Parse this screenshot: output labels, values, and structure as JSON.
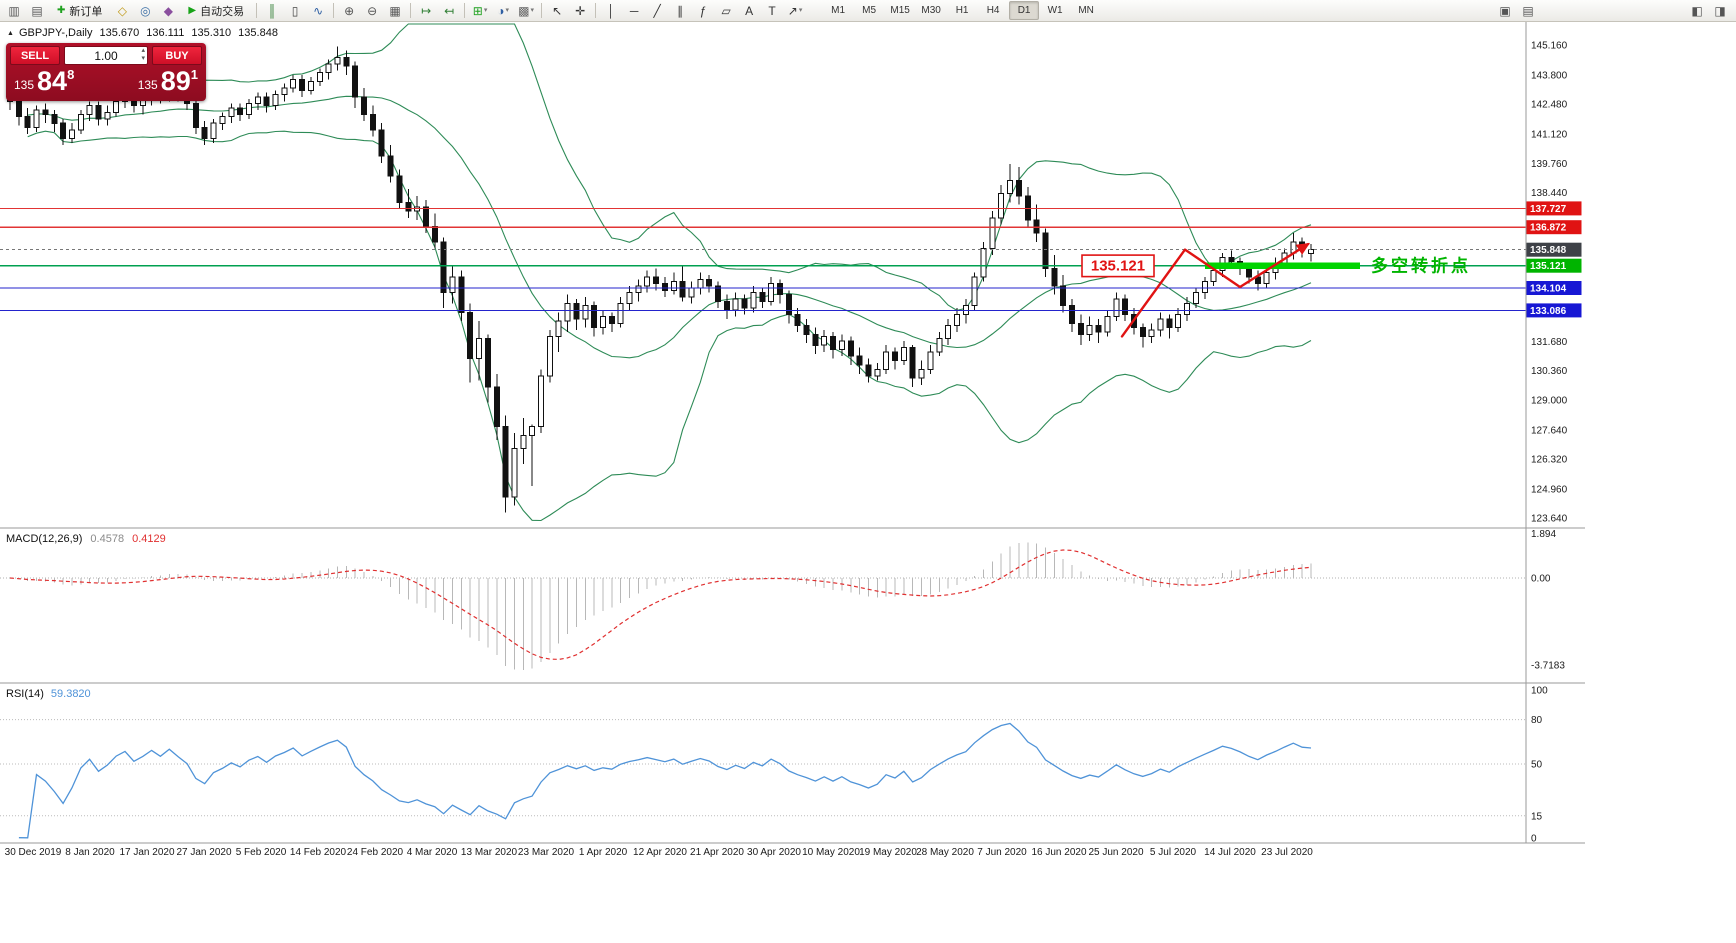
{
  "toolbar": {
    "new_order_label": "新订单",
    "autotrading_label": "自动交易",
    "timeframes": [
      "M1",
      "M5",
      "M15",
      "M30",
      "H1",
      "H4",
      "D1",
      "W1",
      "MN"
    ],
    "active_timeframe": "D1",
    "left_icons": [
      {
        "name": "chart-window-icon",
        "glyph": "▥",
        "color": "#5a5a5a"
      },
      {
        "name": "profiles-icon",
        "glyph": "▤",
        "color": "#5a5a5a"
      }
    ],
    "mid_icons": [
      {
        "name": "history-center-icon",
        "glyph": "◇",
        "color": "#c09a18"
      },
      {
        "name": "global-search-icon",
        "glyph": "◎",
        "color": "#3a6ea5"
      },
      {
        "name": "metaeditor-icon",
        "glyph": "◆",
        "color": "#8a4f9e"
      }
    ],
    "tool_icons": [
      {
        "name": "bar-chart-icon",
        "glyph": "║",
        "color": "#2e7d32"
      },
      {
        "name": "candlestick-chart-icon",
        "glyph": "▯",
        "color": "#444444"
      },
      {
        "name": "line-chart-icon",
        "glyph": "∿",
        "color": "#2e5fa3"
      },
      {
        "sep": true
      },
      {
        "name": "zoom-in-icon",
        "glyph": "⊕",
        "color": "#555555"
      },
      {
        "name": "zoom-out-icon",
        "glyph": "⊖",
        "color": "#555555"
      },
      {
        "name": "tile-windows-icon",
        "glyph": "▦",
        "color": "#555555"
      },
      {
        "sep": true
      },
      {
        "name": "auto-scroll-icon",
        "glyph": "↦",
        "color": "#2e7d32"
      },
      {
        "name": "chart-shift-icon",
        "glyph": "↤",
        "color": "#2e7d32"
      },
      {
        "sep": true
      },
      {
        "name": "indicators-icon",
        "glyph": "⊞",
        "color": "#1fa11f",
        "caret": true
      },
      {
        "name": "periods-icon",
        "glyph": "◑",
        "color": "#2e5fa3",
        "caret": true
      },
      {
        "name": "templates-icon",
        "glyph": "▩",
        "color": "#666666",
        "caret": true
      },
      {
        "sep": true
      },
      {
        "name": "cursor-icon",
        "glyph": "↖",
        "color": "#333333"
      },
      {
        "name": "crosshair-icon",
        "glyph": "✛",
        "color": "#333333"
      },
      {
        "sep": true
      },
      {
        "name": "vertical-line-icon",
        "glyph": "│",
        "color": "#333333"
      },
      {
        "name": "horizontal-line-icon",
        "glyph": "─",
        "color": "#333333"
      },
      {
        "name": "trendline-icon",
        "glyph": "╱",
        "color": "#333333"
      },
      {
        "name": "channel-icon",
        "glyph": "∥",
        "color": "#333333"
      },
      {
        "name": "fibonacci-icon",
        "glyph": "ƒ",
        "color": "#333333"
      },
      {
        "name": "shapes-icon",
        "glyph": "▱",
        "color": "#333333"
      },
      {
        "name": "text-icon",
        "glyph": "A",
        "color": "#333333"
      },
      {
        "name": "label-icon",
        "glyph": "T",
        "color": "#333333"
      },
      {
        "name": "arrows-icon",
        "glyph": "↗",
        "color": "#333333",
        "caret": true
      }
    ],
    "right_icons_a": [
      {
        "name": "data-window-icon",
        "glyph": "▣",
        "color": "#555555"
      },
      {
        "name": "market-depth-icon",
        "glyph": "▤",
        "color": "#555555"
      }
    ],
    "right_icons_b": [
      {
        "name": "dock-left-icon",
        "glyph": "◧",
        "color": "#555555"
      },
      {
        "name": "dock-right-icon",
        "glyph": "◨",
        "color": "#555555"
      }
    ]
  },
  "chart": {
    "header": {
      "expander": "▲",
      "symbol": "GBPJPY-,Daily",
      "open": "135.670",
      "high": "136.111",
      "low": "135.310",
      "close": "135.848"
    },
    "one_click": {
      "sell_label": "SELL",
      "buy_label": "BUY",
      "volume": "1.00",
      "spin_up": "▴",
      "spin_down": "▾",
      "sell_small": "135",
      "sell_big": "84",
      "sell_sup": "8",
      "buy_small": "135",
      "buy_big": "89",
      "buy_sup": "1"
    },
    "price_axis_labels": [
      "145.160",
      "143.800",
      "142.480",
      "141.120",
      "139.760",
      "138.440",
      "131.680",
      "130.360",
      "129.000",
      "127.640",
      "126.320",
      "124.960",
      "123.640"
    ],
    "badges": [
      {
        "label": "137.727",
        "style": "red"
      },
      {
        "label": "136.872",
        "style": "red"
      },
      {
        "label": "135.848",
        "style": "current"
      },
      {
        "label": "135.121",
        "style": "green"
      },
      {
        "label": "134.104",
        "style": "blue"
      },
      {
        "label": "133.086",
        "style": "blue"
      }
    ],
    "annotations": {
      "price_label": "135.121",
      "turning_point_text": "多空转折点"
    }
  },
  "macd": {
    "title": "MACD(12,26,9)",
    "value_main": "0.4578",
    "value_signal": "0.4129",
    "axis_labels": [
      "1.894",
      "0.00",
      "-3.7183"
    ]
  },
  "rsi": {
    "title": "RSI(14)",
    "value": "59.3820",
    "axis_labels": [
      "100",
      "80",
      "50",
      "15",
      "0"
    ],
    "levels": [
      80,
      50,
      15
    ]
  },
  "dates": [
    "30 Dec 2019",
    "8 Jan 2020",
    "17 Jan 2020",
    "27 Jan 2020",
    "5 Feb 2020",
    "14 Feb 2020",
    "24 Feb 2020",
    "4 Mar 2020",
    "13 Mar 2020",
    "23 Mar 2020",
    "1 Apr 2020",
    "12 Apr 2020",
    "21 Apr 2020",
    "30 Apr 2020",
    "10 May 2020",
    "19 May 2020",
    "28 May 2020",
    "7 Jun 2020",
    "16 Jun 2020",
    "25 Jun 2020",
    "5 Jul 2020",
    "14 Jul 2020",
    "23 Jul 2020"
  ],
  "colors": {
    "red_line": "#e23434",
    "blue_line": "#2323cc",
    "green_line": "#00a050",
    "green_thick": "#00d400",
    "badge_red": "#e01313",
    "badge_blue": "#1717d4",
    "badge_green": "#00b400",
    "badge_current": "#3e4147",
    "candle": "#111111",
    "bollinger": "#2e8b57",
    "macd_bar": "#b8b8b8",
    "macd_signal": "#e03030",
    "rsi_line": "#4f93d8",
    "annotation": "#e01313",
    "turning_text": "#00b400",
    "current_dash": "#777777"
  },
  "chart_data": {
    "type": "candlestick",
    "symbol": "GBPJPY",
    "period": "Daily",
    "bid": 135.848,
    "ask": 135.891,
    "ylim": [
      123.64,
      145.16
    ],
    "macd_range": [
      -3.7183,
      1.894
    ],
    "indicators": {
      "bollinger_period": 20,
      "bollinger_deviation": 2,
      "macd": [
        12,
        26,
        9
      ],
      "rsi_period": 14
    },
    "horizontal_lines": [
      {
        "value": 137.727,
        "style": "red"
      },
      {
        "value": 136.872,
        "style": "red"
      },
      {
        "value": 135.121,
        "style": "green"
      },
      {
        "value": 134.104,
        "style": "blue"
      },
      {
        "value": 133.086,
        "style": "blue"
      }
    ],
    "support_zone": {
      "price": 135.121,
      "x_from": 1205,
      "x_to": 1360
    },
    "trend_arrow_points": [
      [
        1122,
        131.9
      ],
      [
        1185,
        135.85
      ],
      [
        1240,
        134.15
      ],
      [
        1308,
        136.1
      ]
    ],
    "candles": [
      [
        143.0,
        143.2,
        142.2,
        142.6
      ],
      [
        142.6,
        142.8,
        141.5,
        141.9
      ],
      [
        141.9,
        142.3,
        141.1,
        141.4
      ],
      [
        141.4,
        142.4,
        141.2,
        142.2
      ],
      [
        142.2,
        142.5,
        141.6,
        142.0
      ],
      [
        142.0,
        142.2,
        141.2,
        141.6
      ],
      [
        141.6,
        141.8,
        140.6,
        140.9
      ],
      [
        140.9,
        141.6,
        140.7,
        141.3
      ],
      [
        141.3,
        142.2,
        141.1,
        142.0
      ],
      [
        142.0,
        142.6,
        141.7,
        142.4
      ],
      [
        142.4,
        142.6,
        141.5,
        141.8
      ],
      [
        141.8,
        142.4,
        141.5,
        142.1
      ],
      [
        142.1,
        142.8,
        141.9,
        142.6
      ],
      [
        142.6,
        143.1,
        142.3,
        142.9
      ],
      [
        142.9,
        143.0,
        142.1,
        142.4
      ],
      [
        142.4,
        142.9,
        142.0,
        142.7
      ],
      [
        142.7,
        143.3,
        142.4,
        143.1
      ],
      [
        143.1,
        143.4,
        142.5,
        142.8
      ],
      [
        142.8,
        143.5,
        142.6,
        143.3
      ],
      [
        143.3,
        143.5,
        142.6,
        142.9
      ],
      [
        142.9,
        143.2,
        142.2,
        142.5
      ],
      [
        142.5,
        142.7,
        141.1,
        141.4
      ],
      [
        141.4,
        141.7,
        140.6,
        140.9
      ],
      [
        140.9,
        141.8,
        140.7,
        141.6
      ],
      [
        141.6,
        142.1,
        141.3,
        141.9
      ],
      [
        141.9,
        142.5,
        141.6,
        142.3
      ],
      [
        142.3,
        142.5,
        141.7,
        142.0
      ],
      [
        142.0,
        142.7,
        141.8,
        142.5
      ],
      [
        142.5,
        143.0,
        142.2,
        142.8
      ],
      [
        142.8,
        143.0,
        142.1,
        142.4
      ],
      [
        142.4,
        143.1,
        142.2,
        142.9
      ],
      [
        142.9,
        143.4,
        142.6,
        143.2
      ],
      [
        143.2,
        143.8,
        143.0,
        143.6
      ],
      [
        143.6,
        143.8,
        142.8,
        143.1
      ],
      [
        143.1,
        143.7,
        142.9,
        143.5
      ],
      [
        143.5,
        144.1,
        143.3,
        143.9
      ],
      [
        143.9,
        144.5,
        143.6,
        144.3
      ],
      [
        144.3,
        145.1,
        144.0,
        144.6
      ],
      [
        144.6,
        144.9,
        143.8,
        144.2
      ],
      [
        144.2,
        144.4,
        142.3,
        142.8
      ],
      [
        142.8,
        143.2,
        141.7,
        142.0
      ],
      [
        142.0,
        142.4,
        141.0,
        141.3
      ],
      [
        141.3,
        141.6,
        139.8,
        140.1
      ],
      [
        140.1,
        140.6,
        138.9,
        139.2
      ],
      [
        139.2,
        139.5,
        137.7,
        138.0
      ],
      [
        138.0,
        138.6,
        137.3,
        137.6
      ],
      [
        137.6,
        138.3,
        137.2,
        137.8
      ],
      [
        137.8,
        138.1,
        136.6,
        136.9
      ],
      [
        136.9,
        137.5,
        135.9,
        136.2
      ],
      [
        136.2,
        136.4,
        133.2,
        133.9
      ],
      [
        133.9,
        135.1,
        133.4,
        134.6
      ],
      [
        134.6,
        134.9,
        132.6,
        133.0
      ],
      [
        133.0,
        133.4,
        129.8,
        130.9
      ],
      [
        130.9,
        132.6,
        129.9,
        131.8
      ],
      [
        131.8,
        132.0,
        128.9,
        129.6
      ],
      [
        129.6,
        130.2,
        127.2,
        127.8
      ],
      [
        127.8,
        128.3,
        123.9,
        124.6
      ],
      [
        124.6,
        127.5,
        124.2,
        126.8
      ],
      [
        126.8,
        128.2,
        126.1,
        127.4
      ],
      [
        127.4,
        127.9,
        125.1,
        127.8
      ],
      [
        127.8,
        130.4,
        127.5,
        130.1
      ],
      [
        130.1,
        132.2,
        129.8,
        131.9
      ],
      [
        131.9,
        133.0,
        131.2,
        132.6
      ],
      [
        132.6,
        133.8,
        132.1,
        133.4
      ],
      [
        133.4,
        133.6,
        132.2,
        132.7
      ],
      [
        132.7,
        133.7,
        132.3,
        133.3
      ],
      [
        133.3,
        133.5,
        131.9,
        132.3
      ],
      [
        132.3,
        133.1,
        132.0,
        132.8
      ],
      [
        132.8,
        133.0,
        132.1,
        132.5
      ],
      [
        132.5,
        133.7,
        132.3,
        133.4
      ],
      [
        133.4,
        134.2,
        133.1,
        133.9
      ],
      [
        133.9,
        134.5,
        133.5,
        134.2
      ],
      [
        134.2,
        134.9,
        133.9,
        134.6
      ],
      [
        134.6,
        135.0,
        134.0,
        134.3
      ],
      [
        134.3,
        134.6,
        133.7,
        134.0
      ],
      [
        134.0,
        134.8,
        133.8,
        134.4
      ],
      [
        134.4,
        135.1,
        133.5,
        133.7
      ],
      [
        133.7,
        134.4,
        133.4,
        134.1
      ],
      [
        134.1,
        134.8,
        133.8,
        134.5
      ],
      [
        134.5,
        134.7,
        133.9,
        134.2
      ],
      [
        134.2,
        134.4,
        133.2,
        133.5
      ],
      [
        133.5,
        133.8,
        132.7,
        133.1
      ],
      [
        133.1,
        133.9,
        132.8,
        133.6
      ],
      [
        133.6,
        133.8,
        132.9,
        133.2
      ],
      [
        133.2,
        134.2,
        133.0,
        133.9
      ],
      [
        133.9,
        134.1,
        133.2,
        133.5
      ],
      [
        133.5,
        134.6,
        133.3,
        134.3
      ],
      [
        134.3,
        134.5,
        133.4,
        133.8
      ],
      [
        133.8,
        134.0,
        132.5,
        132.9
      ],
      [
        132.9,
        133.2,
        132.1,
        132.4
      ],
      [
        132.4,
        132.7,
        131.6,
        132.0
      ],
      [
        132.0,
        132.3,
        131.1,
        131.5
      ],
      [
        131.5,
        132.2,
        131.2,
        131.9
      ],
      [
        131.9,
        132.1,
        130.9,
        131.3
      ],
      [
        131.3,
        132.0,
        131.0,
        131.7
      ],
      [
        131.7,
        131.9,
        130.6,
        131.0
      ],
      [
        131.0,
        131.4,
        130.2,
        130.6
      ],
      [
        130.6,
        130.9,
        129.8,
        130.1
      ],
      [
        130.1,
        130.7,
        129.9,
        130.4
      ],
      [
        130.4,
        131.5,
        130.2,
        131.2
      ],
      [
        131.2,
        131.4,
        130.4,
        130.8
      ],
      [
        130.8,
        131.7,
        130.6,
        131.4
      ],
      [
        131.4,
        131.5,
        129.6,
        130.0
      ],
      [
        130.0,
        130.8,
        129.7,
        130.4
      ],
      [
        130.4,
        131.5,
        130.2,
        131.2
      ],
      [
        131.2,
        132.1,
        131.0,
        131.8
      ],
      [
        131.8,
        132.7,
        131.5,
        132.4
      ],
      [
        132.4,
        133.2,
        132.1,
        132.9
      ],
      [
        132.9,
        133.6,
        132.5,
        133.3
      ],
      [
        133.3,
        134.8,
        133.1,
        134.6
      ],
      [
        134.6,
        136.2,
        134.4,
        135.9
      ],
      [
        135.9,
        137.6,
        135.6,
        137.3
      ],
      [
        137.3,
        138.8,
        137.0,
        138.4
      ],
      [
        138.4,
        139.75,
        138.0,
        139.0
      ],
      [
        139.0,
        139.6,
        137.9,
        138.3
      ],
      [
        138.3,
        138.7,
        136.9,
        137.2
      ],
      [
        137.2,
        137.9,
        136.2,
        136.6
      ],
      [
        136.6,
        136.8,
        134.6,
        135.0
      ],
      [
        135.0,
        135.6,
        133.8,
        134.2
      ],
      [
        134.2,
        134.7,
        133.0,
        133.3
      ],
      [
        133.3,
        133.6,
        132.1,
        132.5
      ],
      [
        132.5,
        132.9,
        131.5,
        132.0
      ],
      [
        132.0,
        132.8,
        131.7,
        132.4
      ],
      [
        132.4,
        132.7,
        131.6,
        132.1
      ],
      [
        132.1,
        133.1,
        131.9,
        132.8
      ],
      [
        132.8,
        133.9,
        132.6,
        133.6
      ],
      [
        133.6,
        133.8,
        132.6,
        132.9
      ],
      [
        132.9,
        133.2,
        132.0,
        132.3
      ],
      [
        132.3,
        132.5,
        131.4,
        131.9
      ],
      [
        131.9,
        132.5,
        131.6,
        132.2
      ],
      [
        132.2,
        133.0,
        131.9,
        132.7
      ],
      [
        132.7,
        132.9,
        131.8,
        132.3
      ],
      [
        132.3,
        133.2,
        132.1,
        132.9
      ],
      [
        132.9,
        133.7,
        132.6,
        133.4
      ],
      [
        133.4,
        134.1,
        133.2,
        133.9
      ],
      [
        133.9,
        134.6,
        133.6,
        134.4
      ],
      [
        134.4,
        135.1,
        134.2,
        134.9
      ],
      [
        134.9,
        135.7,
        134.6,
        135.5
      ],
      [
        135.5,
        135.8,
        135.0,
        135.3
      ],
      [
        135.3,
        135.5,
        134.7,
        135.0
      ],
      [
        135.0,
        135.2,
        134.3,
        134.6
      ],
      [
        134.6,
        134.9,
        134.0,
        134.3
      ],
      [
        134.3,
        135.0,
        134.1,
        134.8
      ],
      [
        134.8,
        135.5,
        134.5,
        135.2
      ],
      [
        135.2,
        135.9,
        135.0,
        135.7
      ],
      [
        135.7,
        136.6,
        135.4,
        136.2
      ],
      [
        136.2,
        136.4,
        135.5,
        135.9
      ],
      [
        135.67,
        136.111,
        135.31,
        135.848
      ]
    ]
  }
}
